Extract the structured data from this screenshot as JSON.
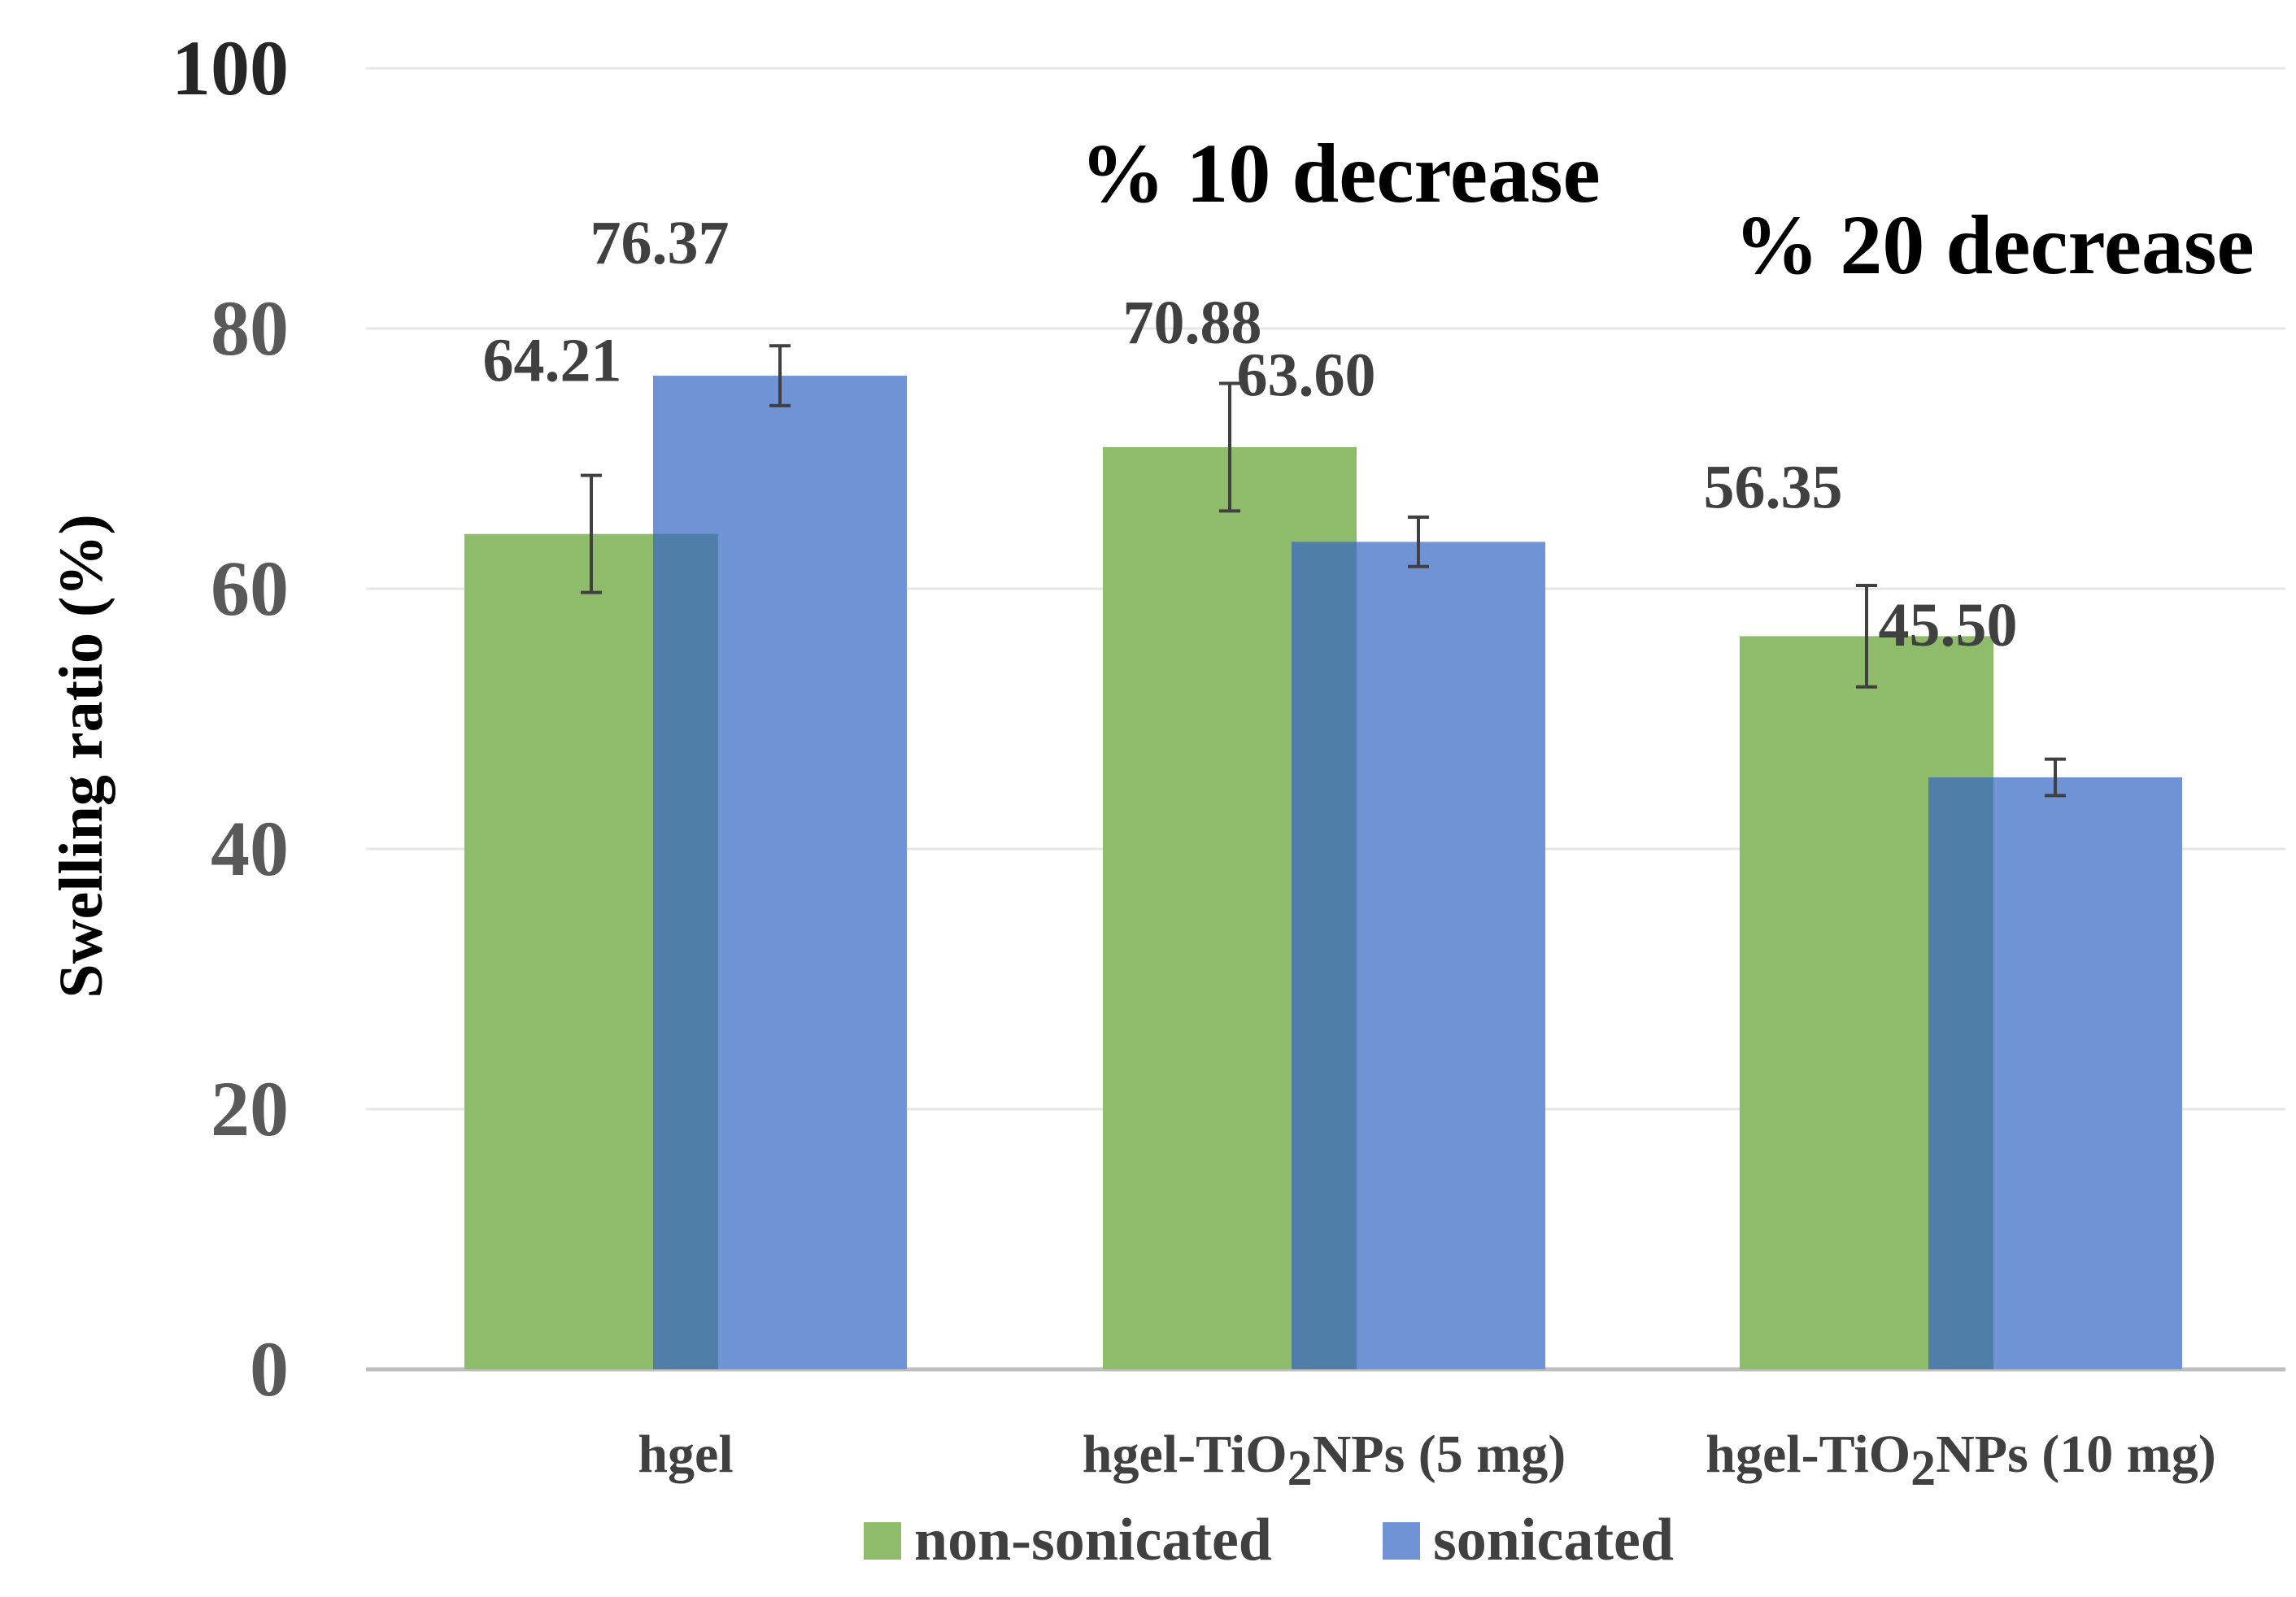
{
  "chart_data": {
    "type": "bar",
    "title": "",
    "xlabel": "",
    "ylabel": "Swelling ratio (%)",
    "ylim": [
      0,
      100
    ],
    "yticks": [
      0,
      20,
      40,
      60,
      80,
      100
    ],
    "grid": true,
    "categories": [
      {
        "label": "hgel",
        "prefix": "hgel",
        "subscript": "",
        "suffix": ""
      },
      {
        "label": "hgel-TiO2NPs (5 mg)",
        "prefix": "hgel-TiO",
        "subscript": "2",
        "suffix": "NPs (5 mg)"
      },
      {
        "label": "hgel-TiO2NPs (10 mg)",
        "prefix": "hgel-TiO",
        "subscript": "2",
        "suffix": "NPs (10 mg)"
      }
    ],
    "series": [
      {
        "name": "non-sonicated",
        "color": "#8fbc6a",
        "values": [
          64.21,
          70.88,
          56.35
        ],
        "labels": [
          "64.21",
          "70.88",
          "56.35"
        ],
        "errors": [
          4.5,
          4.9,
          3.9
        ]
      },
      {
        "name": "sonicated",
        "color": "#6f93d4",
        "values": [
          76.37,
          63.6,
          45.5
        ],
        "labels": [
          "76.37",
          "63.60",
          "45.50"
        ],
        "errors": [
          2.3,
          1.9,
          1.4
        ]
      }
    ],
    "overlap_color": "#4f7fa8",
    "annotations": [
      "% 10 decrease",
      "% 20 decrease"
    ],
    "legend_position": "bottom-center"
  }
}
